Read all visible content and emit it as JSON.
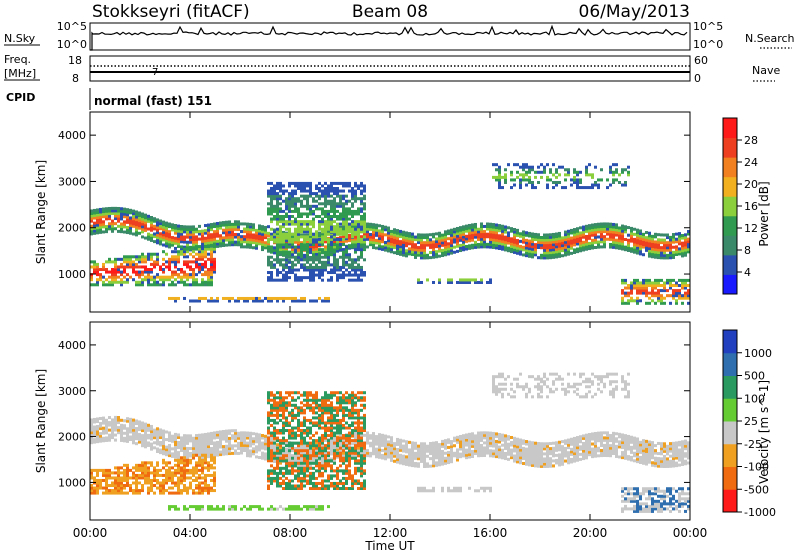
{
  "header": {
    "station": "Stokkseyri (fitACF)",
    "beam": "Beam 08",
    "date": "06/May/2013"
  },
  "noise_panel": {
    "left_label": "N.Sky",
    "right_label": "N.Search",
    "tick_high": "10^5",
    "tick_low": "10^0"
  },
  "freq_panel": {
    "label_line1": "Freq.",
    "label_line2": "[MHz]",
    "freq_ticks": [
      "18",
      "8"
    ],
    "nave_ticks": [
      "60",
      "0"
    ],
    "right_label": "Nave",
    "marker": "7"
  },
  "cpid_panel": {
    "label": "CPID",
    "value": "normal (fast) 151"
  },
  "colors": {
    "power_scale": [
      "#1a1aff",
      "#2a50b0",
      "#3a8a6a",
      "#2f9a50",
      "#8ccf3c",
      "#f0b020",
      "#f08020",
      "#ee4020",
      "#ff1a1a"
    ],
    "velocity_scale": [
      "#2040c0",
      "#2f6fb0",
      "#2a9a60",
      "#66cc33",
      "#c8c8c8",
      "#f0a020",
      "#f06a10",
      "#ff1a1a"
    ]
  },
  "chart_data": [
    {
      "type": "heatmap",
      "name": "power",
      "ylabel": "Slant Range [km]",
      "yticks": [
        "4000",
        "3000",
        "2000",
        "1000"
      ],
      "ylim": [
        180,
        4500
      ],
      "colorbar": {
        "label": "Power [dB]",
        "ticks": [
          "28",
          "24",
          "20",
          "16",
          "12",
          "8",
          "4"
        ]
      },
      "xticks": [
        "00:00",
        "04:00",
        "08:00",
        "12:00",
        "16:00",
        "20:00",
        "00:00"
      ]
    },
    {
      "type": "heatmap",
      "name": "velocity",
      "ylabel": "Slant Range [km]",
      "yticks": [
        "4000",
        "3000",
        "2000",
        "1000"
      ],
      "ylim": [
        180,
        4500
      ],
      "colorbar": {
        "label": "Velocity [m s^-1]",
        "ticks": [
          "1000",
          "500",
          "100",
          "25",
          "-25",
          "-100",
          "-500",
          "-1000"
        ]
      },
      "xticks": [
        "00:00",
        "04:00",
        "08:00",
        "12:00",
        "16:00",
        "20:00",
        "00:00"
      ],
      "xlabel": "Time UT"
    }
  ]
}
